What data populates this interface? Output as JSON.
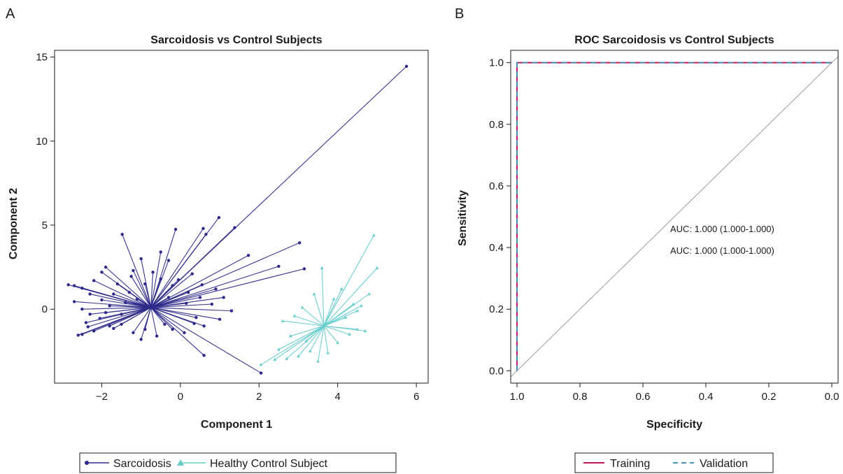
{
  "panels": [
    "A",
    "B"
  ],
  "chart_data": [
    {
      "type": "scatter",
      "title": "Sarcoidosis vs Control Subjects",
      "xlabel": "Component 1",
      "ylabel": "Component 2",
      "xlim": [
        -3.2,
        6.3
      ],
      "ylim": [
        -4.4,
        15.4
      ],
      "xticks": [
        -2,
        0,
        2,
        4,
        6
      ],
      "xtick_labels": [
        "−2",
        "0",
        "2",
        "4",
        "6"
      ],
      "yticks": [
        0,
        5,
        10,
        15
      ],
      "ytick_labels": [
        "0",
        "5",
        "10",
        "15"
      ],
      "grid": false,
      "legend_position": "bottom",
      "series": [
        {
          "name": "Sarcoidosis",
          "color": "#2d2a8a",
          "marker": "circle",
          "centroid": [
            -0.75,
            0.1
          ],
          "points": [
            [
              5.75,
              14.45
            ],
            [
              0.98,
              5.45
            ],
            [
              1.38,
              4.85
            ],
            [
              0.58,
              4.8
            ],
            [
              0.65,
              4.45
            ],
            [
              -0.12,
              4.75
            ],
            [
              -1.48,
              4.45
            ],
            [
              3.03,
              3.95
            ],
            [
              3.15,
              2.4
            ],
            [
              2.5,
              2.55
            ],
            [
              1.73,
              3.2
            ],
            [
              -0.5,
              3.4
            ],
            [
              -0.3,
              2.9
            ],
            [
              -1.0,
              3.0
            ],
            [
              -1.2,
              2.3
            ],
            [
              -1.9,
              2.5
            ],
            [
              -2.7,
              1.4
            ],
            [
              -2.85,
              1.45
            ],
            [
              -2.5,
              1.25
            ],
            [
              -2.3,
              0.9
            ],
            [
              -2.0,
              0.55
            ],
            [
              -2.5,
              0.0
            ],
            [
              -2.3,
              -0.3
            ],
            [
              -2.4,
              -0.8
            ],
            [
              -2.6,
              -1.55
            ],
            [
              -2.5,
              -1.5
            ],
            [
              -2.2,
              -1.3
            ],
            [
              -1.8,
              -1.0
            ],
            [
              -1.5,
              -0.9
            ],
            [
              -1.2,
              -1.4
            ],
            [
              -1.0,
              -1.8
            ],
            [
              -0.6,
              -1.6
            ],
            [
              -0.2,
              -1.2
            ],
            [
              0.1,
              -1.4
            ],
            [
              0.6,
              -2.75
            ],
            [
              2.05,
              -3.8
            ],
            [
              1.3,
              -0.1
            ],
            [
              0.8,
              0.3
            ],
            [
              0.5,
              0.7
            ],
            [
              0.4,
              -0.5
            ],
            [
              -0.3,
              0.7
            ],
            [
              -0.2,
              1.4
            ],
            [
              -0.5,
              1.8
            ],
            [
              -0.9,
              1.5
            ],
            [
              -1.3,
              1.0
            ],
            [
              -1.7,
              0.9
            ],
            [
              -1.8,
              0.2
            ],
            [
              -1.5,
              -0.3
            ],
            [
              -1.4,
              0.4
            ],
            [
              0.9,
              1.2
            ],
            [
              0.2,
              1.0
            ],
            [
              1.0,
              -0.6
            ],
            [
              -2.05,
              -0.55
            ],
            [
              -1.1,
              0.6
            ],
            [
              -0.7,
              2.2
            ],
            [
              0.3,
              2.1
            ],
            [
              -2.2,
              1.7
            ],
            [
              -1.6,
              1.5
            ],
            [
              -0.4,
              -0.9
            ],
            [
              0.6,
              -1.0
            ],
            [
              -2.0,
              2.2
            ],
            [
              -1.25,
              1.95
            ],
            [
              -0.05,
              1.75
            ],
            [
              0.55,
              1.45
            ],
            [
              1.1,
              0.7
            ],
            [
              0.35,
              -0.85
            ],
            [
              -0.9,
              -1.2
            ],
            [
              -1.7,
              -1.15
            ],
            [
              -2.35,
              -1.05
            ],
            [
              -2.7,
              0.45
            ],
            [
              -1.9,
              -0.2
            ],
            [
              0.15,
              0.35
            ]
          ]
        },
        {
          "name": "Healthy Control Subject",
          "color": "#66cccc",
          "marker": "triangle",
          "centroid": [
            3.65,
            -1.0
          ],
          "points": [
            [
              4.92,
              4.4
            ],
            [
              5.0,
              2.45
            ],
            [
              3.6,
              2.45
            ],
            [
              4.4,
              0.3
            ],
            [
              4.7,
              -1.3
            ],
            [
              4.5,
              -1.2
            ],
            [
              2.05,
              -3.3
            ],
            [
              2.4,
              -3.0
            ],
            [
              2.7,
              -2.95
            ],
            [
              3.0,
              -2.8
            ],
            [
              3.3,
              -2.5
            ],
            [
              3.5,
              -3.1
            ],
            [
              3.75,
              -2.6
            ],
            [
              4.0,
              -2.0
            ],
            [
              4.3,
              -1.5
            ],
            [
              4.6,
              0.2
            ],
            [
              3.9,
              0.6
            ],
            [
              3.4,
              0.9
            ],
            [
              3.1,
              0.1
            ],
            [
              2.9,
              -0.4
            ],
            [
              2.6,
              -0.7
            ],
            [
              2.8,
              -1.6
            ],
            [
              4.2,
              -0.5
            ],
            [
              4.5,
              -0.1
            ],
            [
              4.1,
              1.2
            ],
            [
              3.2,
              -1.9
            ],
            [
              2.5,
              -2.4
            ],
            [
              4.8,
              0.9
            ]
          ]
        }
      ]
    },
    {
      "type": "line",
      "title": "ROC Sarcoidosis vs Control Subjects",
      "xlabel": "Specificity",
      "ylabel": "Sensitivity",
      "xlim": [
        1.02,
        -0.02
      ],
      "ylim": [
        -0.04,
        1.04
      ],
      "xticks": [
        1.0,
        0.8,
        0.6,
        0.4,
        0.2,
        0.0
      ],
      "xtick_labels": [
        "1.0",
        "0.8",
        "0.6",
        "0.4",
        "0.2",
        "0.0"
      ],
      "yticks": [
        0.0,
        0.2,
        0.4,
        0.6,
        0.8,
        1.0
      ],
      "ytick_labels": [
        "0.0",
        "0.2",
        "0.4",
        "0.6",
        "0.8",
        "1.0"
      ],
      "grid": false,
      "legend_position": "bottom",
      "reference_line": {
        "x": [
          1.0,
          0.0
        ],
        "y": [
          0.0,
          1.0
        ],
        "color": "#9a9a9a"
      },
      "series": [
        {
          "name": "Training",
          "color": "#c0185c",
          "dash": "solid",
          "x": [
            1.0,
            1.0,
            0.0
          ],
          "y": [
            0.0,
            1.0,
            1.0
          ]
        },
        {
          "name": "Validation",
          "color": "#4a8fb8",
          "dash": "dashed",
          "x": [
            1.0,
            1.0,
            0.0
          ],
          "y": [
            0.0,
            1.0,
            1.0
          ]
        }
      ],
      "annotations": [
        {
          "text": "AUC: 1.000 (1.000-1.000)",
          "color": "#c0185c"
        },
        {
          "text": "AUC: 1.000 (1.000-1.000)",
          "color": "#4a8fb8"
        }
      ]
    }
  ]
}
